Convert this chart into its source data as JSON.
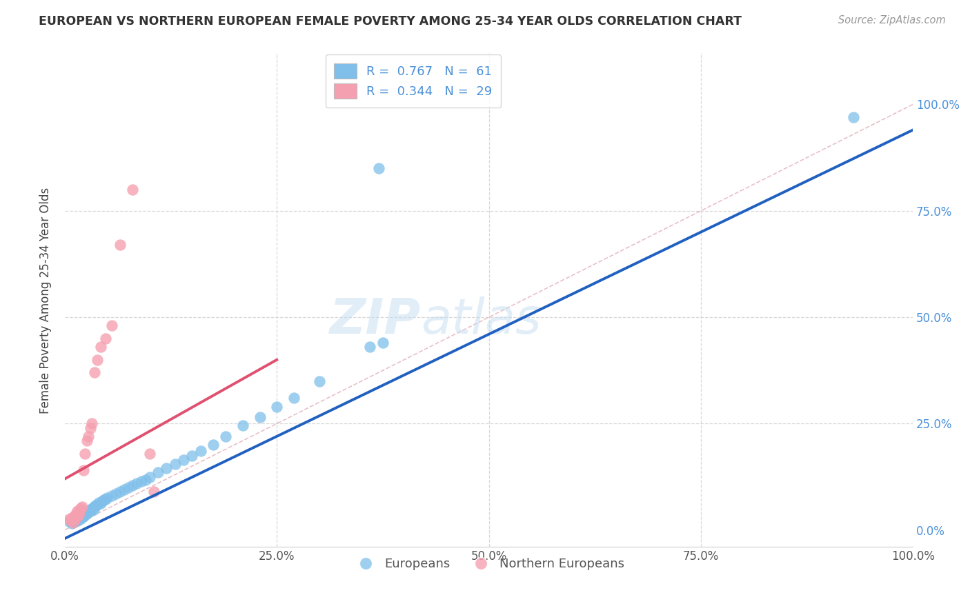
{
  "title": "EUROPEAN VS NORTHERN EUROPEAN FEMALE POVERTY AMONG 25-34 YEAR OLDS CORRELATION CHART",
  "source": "Source: ZipAtlas.com",
  "ylabel": "Female Poverty Among 25-34 Year Olds",
  "xlim": [
    0,
    1.0
  ],
  "ylim": [
    -0.04,
    1.12
  ],
  "x_ticks": [
    0.0,
    0.25,
    0.5,
    0.75,
    1.0
  ],
  "y_ticks": [
    0.0,
    0.25,
    0.5,
    0.75,
    1.0
  ],
  "x_tick_labels": [
    "0.0%",
    "25.0%",
    "50.0%",
    "75.0%",
    "100.0%"
  ],
  "y_tick_labels": [
    "0.0%",
    "25.0%",
    "50.0%",
    "75.0%",
    "100.0%"
  ],
  "european_color": "#7fbfea",
  "northern_european_color": "#f5a0b0",
  "european_line_color": "#2060c0",
  "northern_european_line_color": "#e05070",
  "diagonal_color": "#d0d0d0",
  "watermark": "ZIPatlas",
  "background_color": "#ffffff",
  "grid_color": "#d8d8d8",
  "tick_color_right": "#4a90d9",
  "european_x": [
    0.005,
    0.008,
    0.01,
    0.012,
    0.013,
    0.015,
    0.015,
    0.016,
    0.017,
    0.018,
    0.019,
    0.02,
    0.021,
    0.022,
    0.023,
    0.024,
    0.025,
    0.026,
    0.027,
    0.028,
    0.03,
    0.031,
    0.032,
    0.033,
    0.034,
    0.035,
    0.036,
    0.038,
    0.04,
    0.042,
    0.044,
    0.046,
    0.048,
    0.05,
    0.055,
    0.06,
    0.065,
    0.07,
    0.075,
    0.08,
    0.085,
    0.09,
    0.095,
    0.1,
    0.11,
    0.12,
    0.13,
    0.14,
    0.15,
    0.16,
    0.175,
    0.19,
    0.21,
    0.23,
    0.25,
    0.27,
    0.3,
    0.36,
    0.375,
    0.93,
    0.37
  ],
  "european_y": [
    0.02,
    0.015,
    0.018,
    0.022,
    0.02,
    0.025,
    0.022,
    0.028,
    0.03,
    0.025,
    0.028,
    0.032,
    0.03,
    0.035,
    0.033,
    0.038,
    0.04,
    0.038,
    0.042,
    0.045,
    0.048,
    0.045,
    0.05,
    0.052,
    0.048,
    0.055,
    0.058,
    0.06,
    0.065,
    0.062,
    0.068,
    0.07,
    0.072,
    0.075,
    0.08,
    0.085,
    0.09,
    0.095,
    0.1,
    0.105,
    0.11,
    0.115,
    0.118,
    0.125,
    0.135,
    0.145,
    0.155,
    0.165,
    0.175,
    0.185,
    0.2,
    0.22,
    0.245,
    0.265,
    0.29,
    0.31,
    0.35,
    0.43,
    0.44,
    0.97,
    0.85
  ],
  "northern_european_x": [
    0.005,
    0.007,
    0.008,
    0.01,
    0.011,
    0.012,
    0.013,
    0.014,
    0.015,
    0.016,
    0.017,
    0.018,
    0.019,
    0.02,
    0.022,
    0.024,
    0.026,
    0.028,
    0.03,
    0.032,
    0.035,
    0.038,
    0.042,
    0.048,
    0.055,
    0.065,
    0.08,
    0.1,
    0.105
  ],
  "northern_european_y": [
    0.025,
    0.022,
    0.028,
    0.018,
    0.032,
    0.025,
    0.038,
    0.03,
    0.045,
    0.035,
    0.042,
    0.048,
    0.052,
    0.055,
    0.14,
    0.18,
    0.21,
    0.22,
    0.24,
    0.25,
    0.37,
    0.4,
    0.43,
    0.45,
    0.48,
    0.67,
    0.8,
    0.18,
    0.09
  ],
  "european_line_x": [
    0.0,
    1.0
  ],
  "european_line_y": [
    -0.02,
    0.94
  ],
  "northern_line_x": [
    0.0,
    0.25
  ],
  "northern_line_y": [
    0.12,
    0.4
  ]
}
